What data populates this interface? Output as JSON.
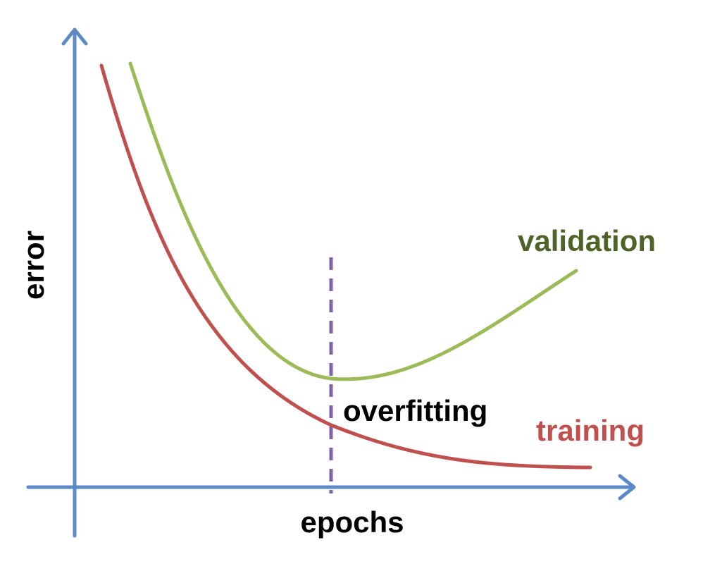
{
  "colors": {
    "axis": "#5b8ac6",
    "training": "#c0504d",
    "validation": "#9bbb59",
    "validation_label": "#4f6228",
    "marker": "#8064a2",
    "text": "#000000"
  },
  "labels": {
    "y_axis": "error",
    "x_axis": "epochs",
    "overfitting": "overfitting",
    "training": "training",
    "validation": "validation"
  },
  "curves": [
    {
      "key": "training",
      "color_key": "training"
    },
    {
      "key": "validation",
      "color_key": "validation"
    }
  ]
}
